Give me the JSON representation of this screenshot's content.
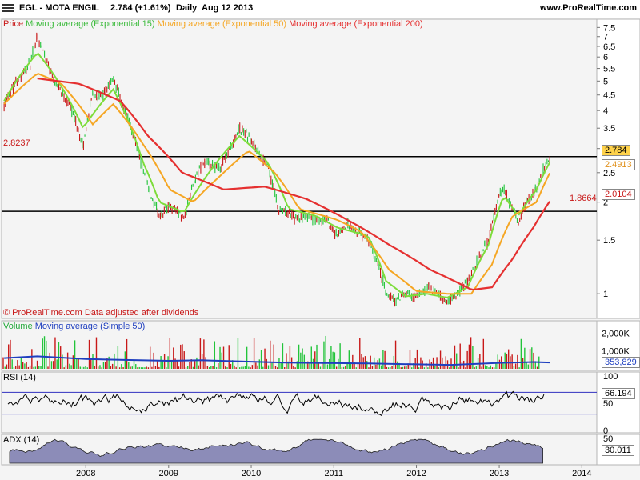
{
  "header": {
    "symbol": "EGL - MOTA ENGIL",
    "quote": "2.784 (+1.61%)",
    "period": "Daily",
    "date": "Aug 12 2013",
    "site": "www.ProRealTime.com"
  },
  "colors": {
    "price_up": "#22c43a",
    "price_down": "#c81818",
    "ema15": "#7ddc3a",
    "ema50": "#f5a623",
    "ema200": "#e53030",
    "volume_ma": "#1f3fbf",
    "rsi_line": "#000000",
    "adx_fill": "#8c8cb8"
  },
  "price_panel": {
    "legend": {
      "price": "Price",
      "ema15": "Moving average (Exponential 15)",
      "ema50": "Moving average (Exponential 50)",
      "ema200": "Moving average (Exponential 200)"
    },
    "footer": "© ProRealTime.com Data adjusted after dividends",
    "levels": [
      {
        "label": "2.8237",
        "value": 2.8237
      },
      {
        "label": "1.8664",
        "value": 1.8664
      }
    ],
    "tags": {
      "last": "2.784",
      "ema50": "2.4913",
      "ema200": "2.0104"
    }
  },
  "volume_panel": {
    "title": "Volume",
    "ma_label": "Moving average (Simple 50)",
    "last_tag": "353,829"
  },
  "rsi_panel": {
    "title": "RSI (14)",
    "last_tag": "66.194"
  },
  "adx_panel": {
    "title": "ADX (14)",
    "last_tag": "30.011"
  },
  "chart_data": [
    {
      "type": "line",
      "title": "EGL - MOTA ENGIL",
      "y_scale": "log",
      "ylim": [
        0.85,
        7.7
      ],
      "y_ticks": [
        "7.5",
        "7",
        "6.5",
        "6",
        "5.5",
        "5",
        "4.5",
        "4",
        "3.5",
        "3",
        "2.5",
        "2",
        "1.5",
        "1"
      ],
      "x_ticks": [
        "2008",
        "2009",
        "2010",
        "2011",
        "2012",
        "2013",
        "2014"
      ],
      "x_range": [
        "2007-01-01",
        "2014-03-01"
      ],
      "series": [
        {
          "name": "Price",
          "x": [
            "2007-01-05",
            "2007-03-01",
            "2007-05-01",
            "2007-06-01",
            "2007-08-01",
            "2007-09-15",
            "2007-11-01",
            "2007-12-20",
            "2008-02-01",
            "2008-03-15",
            "2008-05-01",
            "2008-06-20",
            "2008-08-01",
            "2008-09-10",
            "2008-10-15",
            "2008-11-20",
            "2009-01-05",
            "2009-02-15",
            "2009-03-10",
            "2009-04-20",
            "2009-06-01",
            "2009-07-15",
            "2009-08-20",
            "2009-10-01",
            "2009-11-10",
            "2009-12-20",
            "2010-02-01",
            "2010-03-15",
            "2010-05-01",
            "2010-06-15",
            "2010-07-20",
            "2010-09-01",
            "2010-10-15",
            "2010-12-01",
            "2011-01-15",
            "2011-03-01",
            "2011-04-15",
            "2011-06-01",
            "2011-07-15",
            "2011-08-20",
            "2011-10-01",
            "2011-11-15",
            "2011-12-31",
            "2012-02-15",
            "2012-04-01",
            "2012-05-15",
            "2012-07-01",
            "2012-08-15",
            "2012-10-01",
            "2012-11-15",
            "2013-01-01",
            "2013-01-20",
            "2013-03-01",
            "2013-03-25",
            "2013-05-01",
            "2013-06-15",
            "2013-07-20",
            "2013-08-12"
          ],
          "y": [
            4.2,
            5.0,
            5.7,
            7.0,
            5.3,
            4.6,
            4.0,
            3.0,
            4.6,
            4.4,
            5.1,
            4.0,
            3.3,
            2.5,
            2.1,
            1.8,
            1.95,
            1.85,
            1.75,
            2.3,
            2.7,
            2.6,
            2.6,
            3.0,
            3.5,
            3.3,
            2.9,
            2.6,
            1.9,
            1.85,
            1.75,
            1.8,
            1.75,
            1.75,
            1.55,
            1.7,
            1.6,
            1.5,
            1.25,
            1.0,
            0.95,
            1.0,
            0.97,
            1.05,
            1.0,
            0.93,
            1.0,
            1.1,
            1.3,
            1.5,
            2.1,
            2.2,
            1.9,
            1.7,
            2.0,
            2.2,
            2.6,
            2.784
          ]
        },
        {
          "name": "Moving average (Exponential 15)",
          "x": [
            "2007-01-05",
            "2007-06-01",
            "2007-08-01",
            "2007-12-20",
            "2008-05-01",
            "2008-09-10",
            "2008-11-20",
            "2009-03-10",
            "2009-07-15",
            "2009-11-10",
            "2010-03-15",
            "2010-06-15",
            "2010-10-15",
            "2011-01-15",
            "2011-06-01",
            "2011-08-20",
            "2011-11-15",
            "2012-02-15",
            "2012-05-15",
            "2012-08-15",
            "2012-11-15",
            "2013-01-20",
            "2013-03-25",
            "2013-06-15",
            "2013-08-12"
          ],
          "y": [
            4.3,
            6.2,
            5.4,
            3.5,
            4.7,
            2.7,
            2.0,
            1.85,
            2.6,
            3.3,
            2.7,
            1.9,
            1.8,
            1.65,
            1.55,
            1.1,
            0.98,
            1.0,
            0.97,
            1.05,
            1.45,
            2.1,
            1.8,
            2.2,
            2.7
          ]
        },
        {
          "name": "Moving average (Exponential 50)",
          "x": [
            "2007-01-05",
            "2007-06-01",
            "2007-09-15",
            "2008-02-01",
            "2008-05-01",
            "2008-09-10",
            "2009-01-05",
            "2009-04-20",
            "2009-08-20",
            "2009-12-20",
            "2010-04-15",
            "2010-08-01",
            "2011-01-15",
            "2011-05-01",
            "2011-09-01",
            "2011-12-31",
            "2012-05-15",
            "2012-09-01",
            "2012-12-01",
            "2013-03-01",
            "2013-06-15",
            "2013-08-12"
          ],
          "y": [
            4.2,
            5.3,
            4.9,
            3.6,
            4.2,
            3.1,
            2.2,
            2.0,
            2.45,
            2.95,
            2.5,
            1.9,
            1.75,
            1.6,
            1.2,
            1.02,
            1.0,
            1.0,
            1.25,
            1.8,
            2.0,
            2.4913
          ]
        },
        {
          "name": "Moving average (Exponential 200)",
          "x": [
            "2007-06-01",
            "2007-12-01",
            "2008-06-01",
            "2008-10-01",
            "2009-03-01",
            "2009-09-01",
            "2010-03-01",
            "2010-09-01",
            "2011-03-01",
            "2011-09-01",
            "2012-03-01",
            "2012-09-01",
            "2012-12-01",
            "2013-03-01",
            "2013-06-01",
            "2013-08-12"
          ],
          "y": [
            5.1,
            4.9,
            4.3,
            3.3,
            2.5,
            2.2,
            2.25,
            2.05,
            1.75,
            1.45,
            1.2,
            1.03,
            1.05,
            1.3,
            1.65,
            2.0104
          ]
        }
      ]
    },
    {
      "type": "bar",
      "title": "Volume",
      "y_ticks": [
        "2,000K",
        "1,000K"
      ],
      "series": [
        {
          "name": "Moving average (Simple 50)",
          "x": [
            "2007-01-05",
            "2007-06-01",
            "2008-01-01",
            "2008-06-01",
            "2009-01-01",
            "2009-06-01",
            "2010-01-01",
            "2010-06-01",
            "2011-01-01",
            "2011-06-01",
            "2012-01-01",
            "2012-06-01",
            "2013-01-01",
            "2013-06-01",
            "2013-08-12"
          ],
          "y": [
            600,
            700,
            550,
            500,
            450,
            480,
            400,
            350,
            320,
            300,
            250,
            220,
            330,
            380,
            353.829
          ]
        }
      ]
    },
    {
      "type": "line",
      "title": "RSI (14)",
      "ylim": [
        0,
        100
      ],
      "y_ticks": [
        "100",
        "50",
        "0"
      ],
      "series": [
        {
          "name": "RSI (14)",
          "last": 66.194
        }
      ]
    },
    {
      "type": "area",
      "title": "ADX (14)",
      "ylim": [
        0,
        50
      ],
      "y_ticks": [
        "50"
      ],
      "series": [
        {
          "name": "ADX (14)",
          "last": 30.011
        }
      ]
    }
  ]
}
